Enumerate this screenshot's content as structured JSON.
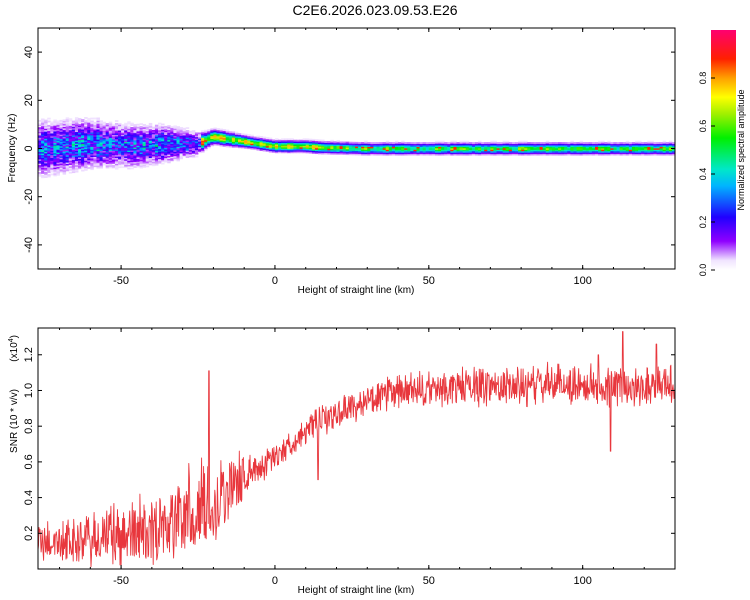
{
  "title": "C2E6.2026.023.09.53.E26",
  "colors": {
    "line": "#e8373d",
    "axis": "#000000",
    "background": "#ffffff"
  },
  "chart_data": [
    {
      "type": "heatmap",
      "panel": "spectrogram",
      "xlabel": "Height of straight line (km)",
      "ylabel": "Frequency (Hz)",
      "xlim": [
        -77,
        130
      ],
      "ylim": [
        -50,
        50
      ],
      "xticks": [
        -50,
        0,
        50,
        100
      ],
      "yticks": [
        -40,
        -20,
        0,
        20,
        40
      ],
      "colorbar": {
        "label": "Normalized spectral amplitude",
        "range": [
          0.0,
          1.0
        ],
        "ticks": [
          0.0,
          0.2,
          0.4,
          0.6,
          0.8
        ],
        "tick_labels": [
          "0.0",
          "0.2",
          "0.4",
          "0.6",
          "0.8"
        ],
        "colormap": "rainbow (white-violet-blue-cyan-green-yellow-red-magenta)"
      },
      "description": "Broad scattered energy (-75 to -25 km, about -10 to 10 Hz) narrowing into a concentrated band near 0-5 Hz from -25 km onwards",
      "ridge": {
        "x": [
          -75,
          -60,
          -45,
          -35,
          -25,
          -20,
          -15,
          -10,
          -5,
          0,
          5,
          10,
          15,
          30,
          60,
          90,
          130
        ],
        "center_hz": [
          0,
          2,
          1,
          2,
          2,
          5,
          4,
          3,
          2,
          1,
          1,
          1,
          0.5,
          0,
          0,
          0,
          0
        ],
        "halfwidth_hz": [
          9,
          8,
          7,
          6,
          4,
          3,
          3,
          2.5,
          2.5,
          2.5,
          2.5,
          2.5,
          2.5,
          2.5,
          2.5,
          2.5,
          2.5
        ]
      }
    },
    {
      "type": "line",
      "panel": "snr",
      "xlabel": "Height of straight line (km)",
      "ylabel": "SNR (10 * v/v)",
      "y_scale_label": "(x10",
      "y_scale_exp": "4",
      "xlim": [
        -77,
        130
      ],
      "ylim": [
        0,
        1.35
      ],
      "xticks": [
        -50,
        0,
        50,
        100
      ],
      "yticks": [
        0.2,
        0.4,
        0.6,
        0.8,
        1.0,
        1.2
      ],
      "ytick_labels": [
        "0.2",
        "0.4",
        "0.6",
        "0.8",
        "1.0",
        "1.2"
      ],
      "series": [
        {
          "name": "SNR",
          "trend_x": [
            -77,
            -70,
            -60,
            -50,
            -40,
            -30,
            -25,
            -20,
            -15,
            -10,
            -5,
            0,
            5,
            10,
            15,
            20,
            25,
            30,
            40,
            50,
            60,
            70,
            80,
            90,
            100,
            110,
            120,
            130
          ],
          "trend_y": [
            0.15,
            0.15,
            0.16,
            0.19,
            0.23,
            0.29,
            0.33,
            0.37,
            0.45,
            0.52,
            0.57,
            0.63,
            0.7,
            0.77,
            0.83,
            0.87,
            0.91,
            0.94,
            0.99,
            1.0,
            1.02,
            1.03,
            1.02,
            1.04,
            1.03,
            1.02,
            1.03,
            1.04
          ],
          "noise_amplitude": [
            0.14,
            0.14,
            0.18,
            0.22,
            0.24,
            0.28,
            0.3,
            0.3,
            0.25,
            0.15,
            0.1,
            0.09,
            0.08,
            0.08,
            0.1,
            0.1,
            0.1,
            0.1,
            0.12,
            0.12,
            0.13,
            0.13,
            0.13,
            0.13,
            0.13,
            0.13,
            0.13,
            0.13
          ],
          "peaks": [
            {
              "x": -21.5,
              "y": 1.11
            },
            {
              "x": 113,
              "y": 1.33
            },
            {
              "x": 124,
              "y": 1.26
            },
            {
              "x": 105,
              "y": 1.2
            }
          ],
          "troughs": [
            {
              "x": 109,
              "y": 0.66
            },
            {
              "x": 14,
              "y": 0.5
            }
          ]
        }
      ]
    }
  ]
}
